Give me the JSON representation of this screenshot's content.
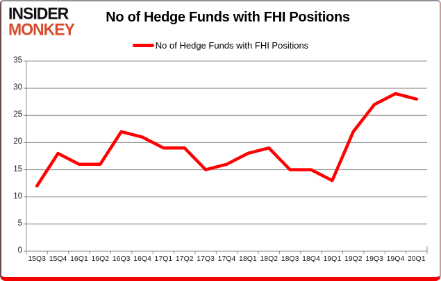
{
  "logo": {
    "line1": "INSIDER",
    "line2": "MONKEY"
  },
  "header": {
    "title": "No of Hedge Funds with FHI Positions"
  },
  "legend": {
    "label": "No of Hedge Funds with FHI Positions"
  },
  "colors": {
    "line": "#fe0101",
    "grid": "#8c8c8c",
    "axis": "#8c8c8c",
    "logo_accent": "#d84a2c",
    "frame_bottom": "#f40000"
  },
  "chart_data": {
    "type": "line",
    "title": "No of Hedge Funds with FHI Positions",
    "categories": [
      "15Q3",
      "15Q4",
      "16Q1",
      "16Q2",
      "16Q3",
      "16Q4",
      "17Q1",
      "17Q2",
      "17Q3",
      "17Q4",
      "18Q1",
      "18Q2",
      "18Q3",
      "18Q4",
      "19Q1",
      "19Q2",
      "19Q3",
      "19Q4",
      "20Q1"
    ],
    "series": [
      {
        "name": "No of Hedge Funds with FHI Positions",
        "values": [
          12,
          18,
          16,
          16,
          22,
          21,
          19,
          19,
          15,
          16,
          18,
          19,
          15,
          15,
          13,
          22,
          27,
          29,
          28
        ]
      }
    ],
    "xlabel": "",
    "ylabel": "",
    "ylim": [
      0,
      35
    ],
    "yticks": [
      0,
      5,
      10,
      15,
      20,
      25,
      30,
      35
    ],
    "grid": "horizontal",
    "legend_position": "top-center"
  }
}
